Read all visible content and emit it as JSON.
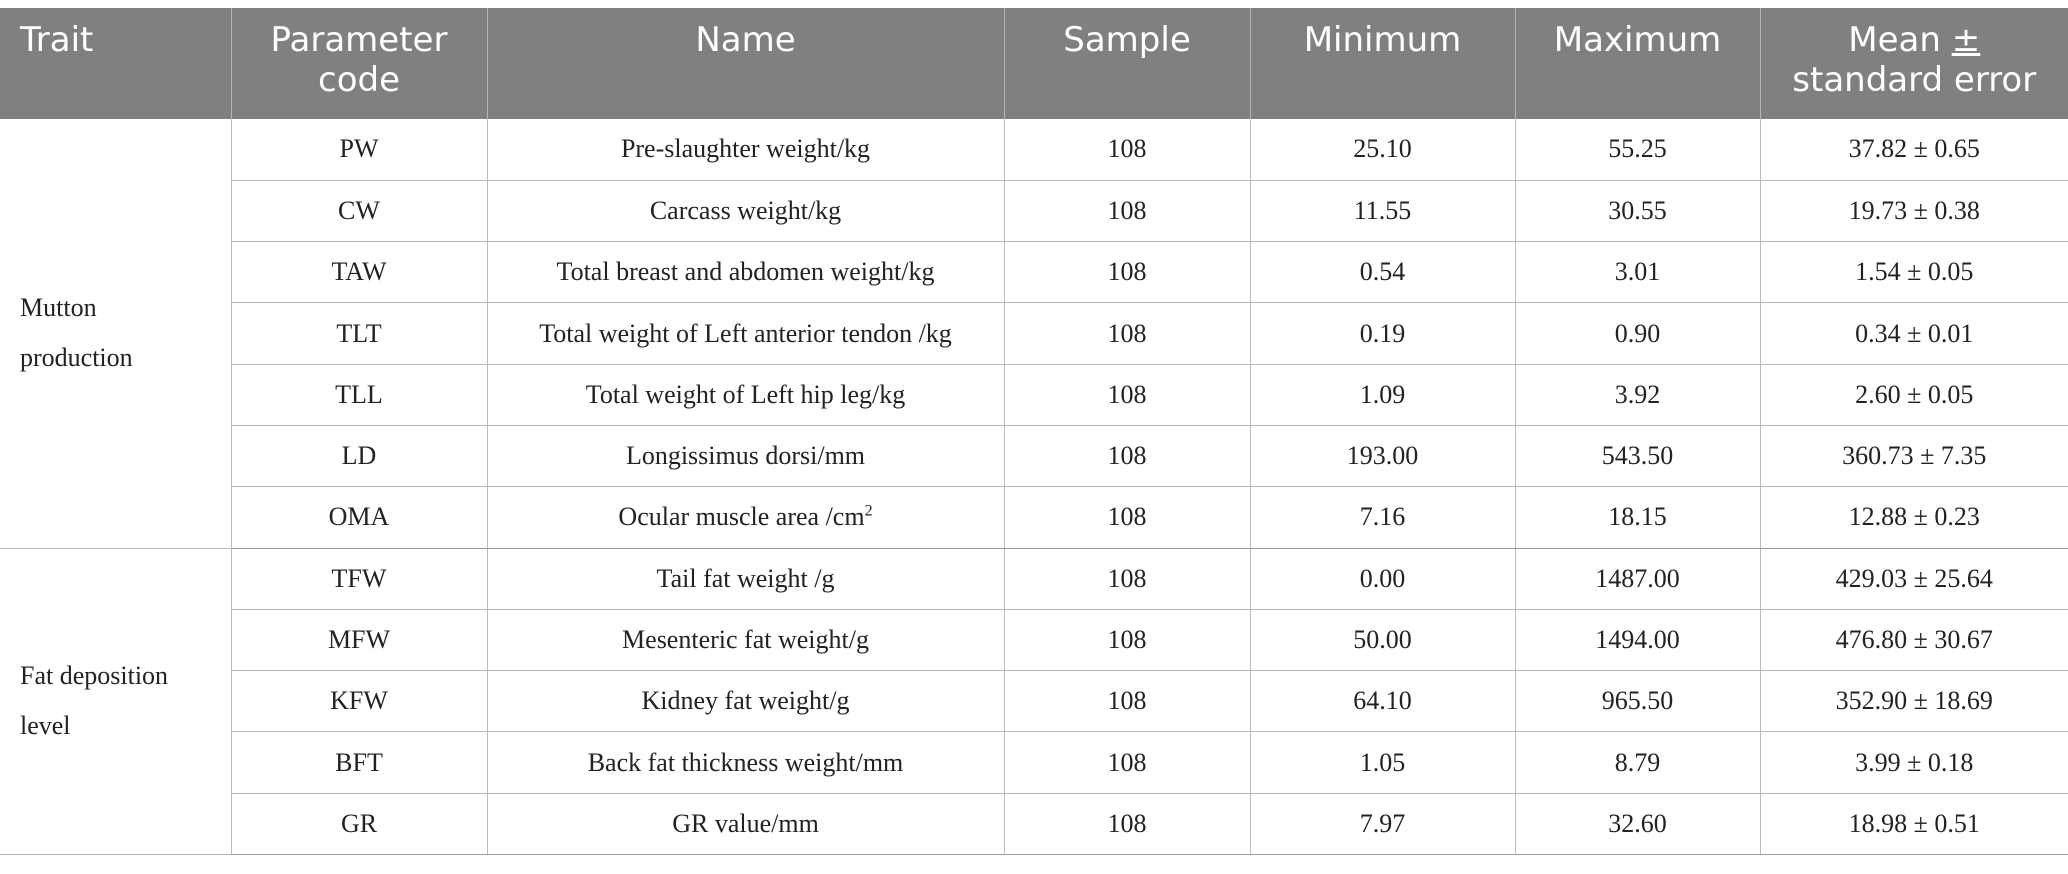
{
  "table": {
    "headers": {
      "trait": "Trait",
      "code_line1": "Parameter",
      "code_line2": "code",
      "name": "Name",
      "sample": "Sample",
      "minimum": "Minimum",
      "maximum": "Maximum",
      "mean_line1_text": "Mean ",
      "mean_line1_pm": "±",
      "mean_line2": "standard error"
    },
    "groups": [
      {
        "trait_line1": "Mutton",
        "trait_line2": "production",
        "rows": [
          {
            "code": "PW",
            "name": "Pre-slaughter weight/kg",
            "sample": "108",
            "min": "25.10",
            "max": "55.25",
            "mean": "37.82 ± 0.65"
          },
          {
            "code": "CW",
            "name": "Carcass weight/kg",
            "sample": "108",
            "min": "11.55",
            "max": "30.55",
            "mean": "19.73 ± 0.38"
          },
          {
            "code": "TAW",
            "name": "Total breast and abdomen weight/kg",
            "sample": "108",
            "min": "0.54",
            "max": "3.01",
            "mean": "1.54 ± 0.05"
          },
          {
            "code": "TLT",
            "name": "Total weight of Left anterior tendon /kg",
            "sample": "108",
            "min": "0.19",
            "max": "0.90",
            "mean": "0.34 ± 0.01"
          },
          {
            "code": "TLL",
            "name": "Total weight of Left hip leg/kg",
            "sample": "108",
            "min": "1.09",
            "max": "3.92",
            "mean": "2.60 ± 0.05"
          },
          {
            "code": "LD",
            "name": "Longissimus dorsi/mm",
            "sample": "108",
            "min": "193.00",
            "max": "543.50",
            "mean": "360.73 ± 7.35"
          },
          {
            "code": "OMA",
            "name": "Ocular muscle area /cm",
            "name_sup": "2",
            "sample": "108",
            "min": "7.16",
            "max": "18.15",
            "mean": "12.88 ± 0.23"
          }
        ]
      },
      {
        "trait_line1": "Fat deposition",
        "trait_line2": "level",
        "rows": [
          {
            "code": "TFW",
            "name": "Tail fat weight /g",
            "sample": "108",
            "min": "0.00",
            "max": "1487.00",
            "mean": "429.03 ± 25.64"
          },
          {
            "code": "MFW",
            "name": "Mesenteric fat weight/g",
            "sample": "108",
            "min": "50.00",
            "max": "1494.00",
            "mean": "476.80 ± 30.67"
          },
          {
            "code": "KFW",
            "name": "Kidney fat weight/g",
            "sample": "108",
            "min": "64.10",
            "max": "965.50",
            "mean": "352.90 ± 18.69"
          },
          {
            "code": "BFT",
            "name": "Back fat thickness weight/mm",
            "sample": "108",
            "min": "1.05",
            "max": "8.79",
            "mean": "3.99 ± 0.18"
          },
          {
            "code": "GR",
            "name": "GR value/mm",
            "sample": "108",
            "min": "7.97",
            "max": "32.60",
            "mean": "18.98 ± 0.51"
          }
        ]
      }
    ]
  }
}
